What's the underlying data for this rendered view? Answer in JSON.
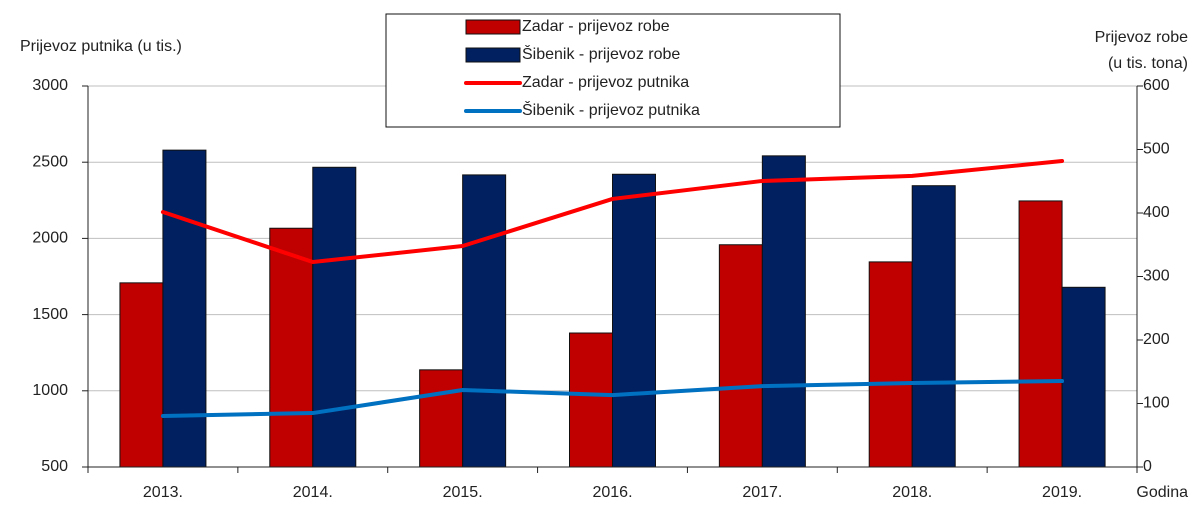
{
  "chart_data": {
    "type": "bar-line",
    "y_label": "Prijevoz putnika (u tis.)",
    "y2_label": [
      "Prijevoz robe",
      "(u tis. tona)"
    ],
    "x_label": "Godina",
    "categories": [
      "2013.",
      "2014.",
      "2015.",
      "2016.",
      "2017.",
      "2018.",
      "2019."
    ],
    "series": [
      {
        "name": "Zadar - prijevoz robe",
        "type": "bar",
        "axis": "y2",
        "color": "#c00000",
        "values": [
          290,
          376,
          153,
          211,
          350,
          323,
          419
        ]
      },
      {
        "name": "Šibenik - prijevoz robe",
        "type": "bar",
        "axis": "y2",
        "color": "#002060",
        "values": [
          499,
          472,
          460,
          461,
          490,
          443,
          283
        ]
      },
      {
        "name": "Zadar - prijevoz putnika",
        "type": "line",
        "axis": "y",
        "color": "#ff0000",
        "values": [
          2173,
          1845,
          1950,
          2259,
          2377,
          2410,
          2508
        ]
      },
      {
        "name": "Šibenik - prijevoz putnika",
        "type": "line",
        "axis": "y",
        "color": "#0070c0",
        "values": [
          835,
          854,
          1005,
          972,
          1031,
          1051,
          1064
        ]
      }
    ],
    "ylim": [
      500,
      3000
    ],
    "yticks": [
      500,
      1000,
      1500,
      2000,
      2500,
      3000
    ],
    "y2lim": [
      0,
      600
    ],
    "y2ticks": [
      0,
      100,
      200,
      300,
      400,
      500,
      600
    ],
    "grid": true
  }
}
